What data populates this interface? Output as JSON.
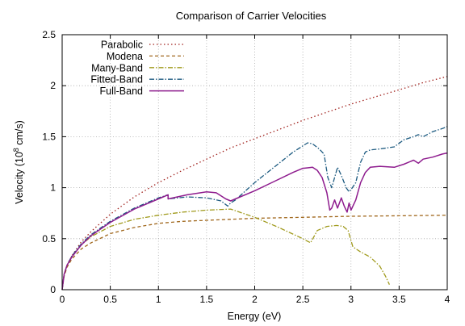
{
  "chart_data": {
    "type": "line",
    "title": "Comparison of Carrier Velocities",
    "xlabel": "Energy (eV)",
    "ylabel": {
      "prefix": "Velocity (10",
      "sup": "8",
      "suffix": " cm/s)"
    },
    "xlim": [
      0,
      4
    ],
    "ylim": [
      0,
      2.5
    ],
    "x_ticks": [
      0,
      0.5,
      1,
      1.5,
      2,
      2.5,
      3,
      3.5,
      4
    ],
    "x_tick_labels": [
      "0",
      "0.5",
      "1",
      "1.5",
      "2",
      "2.5",
      "3",
      "3.5",
      "4"
    ],
    "y_ticks": [
      0,
      0.5,
      1,
      1.5,
      2,
      2.5
    ],
    "y_tick_labels": [
      "0",
      "0.5",
      "1",
      "1.5",
      "2",
      "2.5"
    ],
    "grid": true,
    "legend_position": "top-left",
    "series": [
      {
        "name": "Parabolic",
        "color": "#a0201c",
        "dash": "dotted",
        "x": [
          0,
          0.02,
          0.05,
          0.1,
          0.2,
          0.3,
          0.5,
          0.75,
          1,
          1.25,
          1.5,
          1.75,
          2,
          2.25,
          2.5,
          2.75,
          3,
          3.25,
          3.5,
          3.75,
          4
        ],
        "y": [
          0,
          0.15,
          0.24,
          0.33,
          0.47,
          0.57,
          0.74,
          0.91,
          1.05,
          1.17,
          1.28,
          1.39,
          1.48,
          1.57,
          1.66,
          1.74,
          1.82,
          1.89,
          1.96,
          2.03,
          2.09
        ]
      },
      {
        "name": "Modena",
        "color": "#a0671c",
        "dash": "dashed",
        "x": [
          0,
          0.02,
          0.05,
          0.1,
          0.2,
          0.3,
          0.5,
          0.75,
          1,
          1.25,
          1.5,
          1.75,
          2,
          2.5,
          3,
          3.5,
          4
        ],
        "y": [
          0,
          0.13,
          0.22,
          0.3,
          0.4,
          0.46,
          0.55,
          0.61,
          0.65,
          0.67,
          0.68,
          0.69,
          0.7,
          0.71,
          0.72,
          0.725,
          0.73
        ]
      },
      {
        "name": "Many-Band",
        "color": "#a09a1c",
        "dash": "dashdot",
        "x": [
          0,
          0.02,
          0.05,
          0.1,
          0.2,
          0.3,
          0.5,
          0.75,
          1,
          1.25,
          1.5,
          1.75,
          2,
          2.25,
          2.5,
          2.58,
          2.65,
          2.75,
          2.85,
          2.92,
          2.97,
          3.02,
          3.1,
          3.2,
          3.3,
          3.36,
          3.4
        ],
        "y": [
          0,
          0.15,
          0.24,
          0.32,
          0.44,
          0.52,
          0.62,
          0.69,
          0.73,
          0.76,
          0.78,
          0.79,
          0.71,
          0.61,
          0.5,
          0.46,
          0.58,
          0.62,
          0.63,
          0.62,
          0.58,
          0.42,
          0.37,
          0.32,
          0.23,
          0.13,
          0.05
        ]
      },
      {
        "name": "Fitted-Band",
        "color": "#1c5a80",
        "dash": "dashdot",
        "x": [
          0,
          0.02,
          0.05,
          0.1,
          0.2,
          0.3,
          0.5,
          0.75,
          1,
          1.1,
          1.1,
          1.3,
          1.5,
          1.65,
          1.72,
          1.75,
          1.8,
          2,
          2.2,
          2.4,
          2.55,
          2.6,
          2.67,
          2.72,
          2.76,
          2.8,
          2.86,
          2.9,
          2.95,
          2.98,
          3.0,
          3.05,
          3.1,
          3.15,
          3.2,
          3.3,
          3.45,
          3.55,
          3.65,
          3.7,
          3.75,
          3.85,
          3.95,
          4
        ],
        "y": [
          0,
          0.15,
          0.24,
          0.33,
          0.45,
          0.54,
          0.67,
          0.8,
          0.9,
          0.93,
          0.89,
          0.91,
          0.9,
          0.87,
          0.82,
          0.85,
          0.88,
          1.05,
          1.2,
          1.35,
          1.44,
          1.43,
          1.38,
          1.33,
          1.1,
          1.0,
          1.2,
          1.12,
          1.0,
          0.96,
          0.98,
          1.05,
          1.25,
          1.35,
          1.37,
          1.38,
          1.4,
          1.47,
          1.5,
          1.52,
          1.5,
          1.55,
          1.58,
          1.6
        ]
      },
      {
        "name": "Full-Band",
        "color": "#8e1c8e",
        "dash": "solid",
        "x": [
          0,
          0.02,
          0.05,
          0.1,
          0.2,
          0.3,
          0.5,
          0.75,
          1,
          1.1,
          1.1,
          1.3,
          1.5,
          1.6,
          1.7,
          1.75,
          1.8,
          2,
          2.2,
          2.4,
          2.5,
          2.6,
          2.65,
          2.7,
          2.75,
          2.78,
          2.8,
          2.83,
          2.86,
          2.9,
          2.93,
          2.96,
          2.98,
          3.0,
          3.05,
          3.1,
          3.15,
          3.2,
          3.3,
          3.45,
          3.55,
          3.65,
          3.7,
          3.75,
          3.85,
          3.95,
          4
        ],
        "y": [
          0,
          0.15,
          0.24,
          0.32,
          0.44,
          0.53,
          0.66,
          0.79,
          0.89,
          0.93,
          0.89,
          0.93,
          0.96,
          0.95,
          0.89,
          0.87,
          0.89,
          0.97,
          1.06,
          1.15,
          1.19,
          1.2,
          1.17,
          1.1,
          0.95,
          0.78,
          0.8,
          0.88,
          0.8,
          0.9,
          0.82,
          0.76,
          0.85,
          0.78,
          0.88,
          1.05,
          1.15,
          1.2,
          1.21,
          1.2,
          1.23,
          1.27,
          1.24,
          1.28,
          1.3,
          1.33,
          1.34
        ]
      }
    ]
  }
}
